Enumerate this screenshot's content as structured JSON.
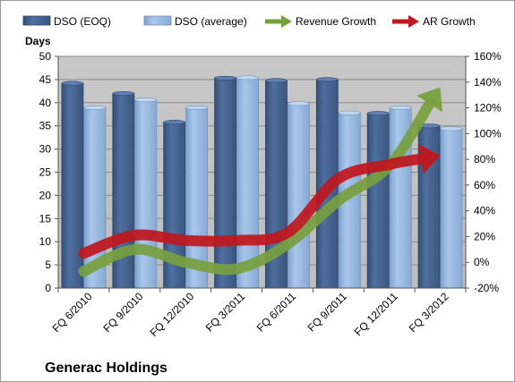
{
  "chart_data": {
    "type": "bar",
    "title": "Generac Holdings",
    "y_left_label": "Days",
    "categories": [
      "FQ 6/2010",
      "FQ 9/2010",
      "FQ 12/2010",
      "FQ 3/2011",
      "FQ 6/2011",
      "FQ 9/2011",
      "FQ 12/2011",
      "FQ 3/2012"
    ],
    "y_left_ticks": [
      "0",
      "5",
      "10",
      "15",
      "20",
      "25",
      "30",
      "35",
      "40",
      "45",
      "50"
    ],
    "y_right_ticks": [
      "-20%",
      "0%",
      "20%",
      "40%",
      "60%",
      "80%",
      "100%",
      "120%",
      "140%",
      "160%"
    ],
    "y_left_range": [
      0,
      50
    ],
    "y_right_range": [
      -20,
      160
    ],
    "legend_position": "top",
    "grid": true,
    "series": [
      {
        "name": "DSO (EOQ)",
        "kind": "bar",
        "axis": "left",
        "color": "#3f5f8f",
        "values": [
          44.2,
          42.0,
          35.8,
          45.3,
          44.8,
          45.0,
          37.7,
          35.0
        ]
      },
      {
        "name": "DSO (average)",
        "kind": "bar",
        "axis": "left",
        "color": "#8fb3dd",
        "values": [
          38.9,
          40.6,
          38.9,
          45.4,
          39.8,
          37.8,
          38.9,
          34.4
        ]
      },
      {
        "name": "Revenue Growth",
        "kind": "arrow",
        "axis": "right",
        "color": "#77a03e",
        "values": [
          -7,
          10,
          0,
          -5,
          14,
          48,
          75,
          136
        ]
      },
      {
        "name": "AR Growth",
        "kind": "arrow",
        "axis": "right",
        "color": "#c1161c",
        "values": [
          7,
          21,
          17,
          17,
          23,
          65,
          76,
          83
        ]
      }
    ]
  }
}
